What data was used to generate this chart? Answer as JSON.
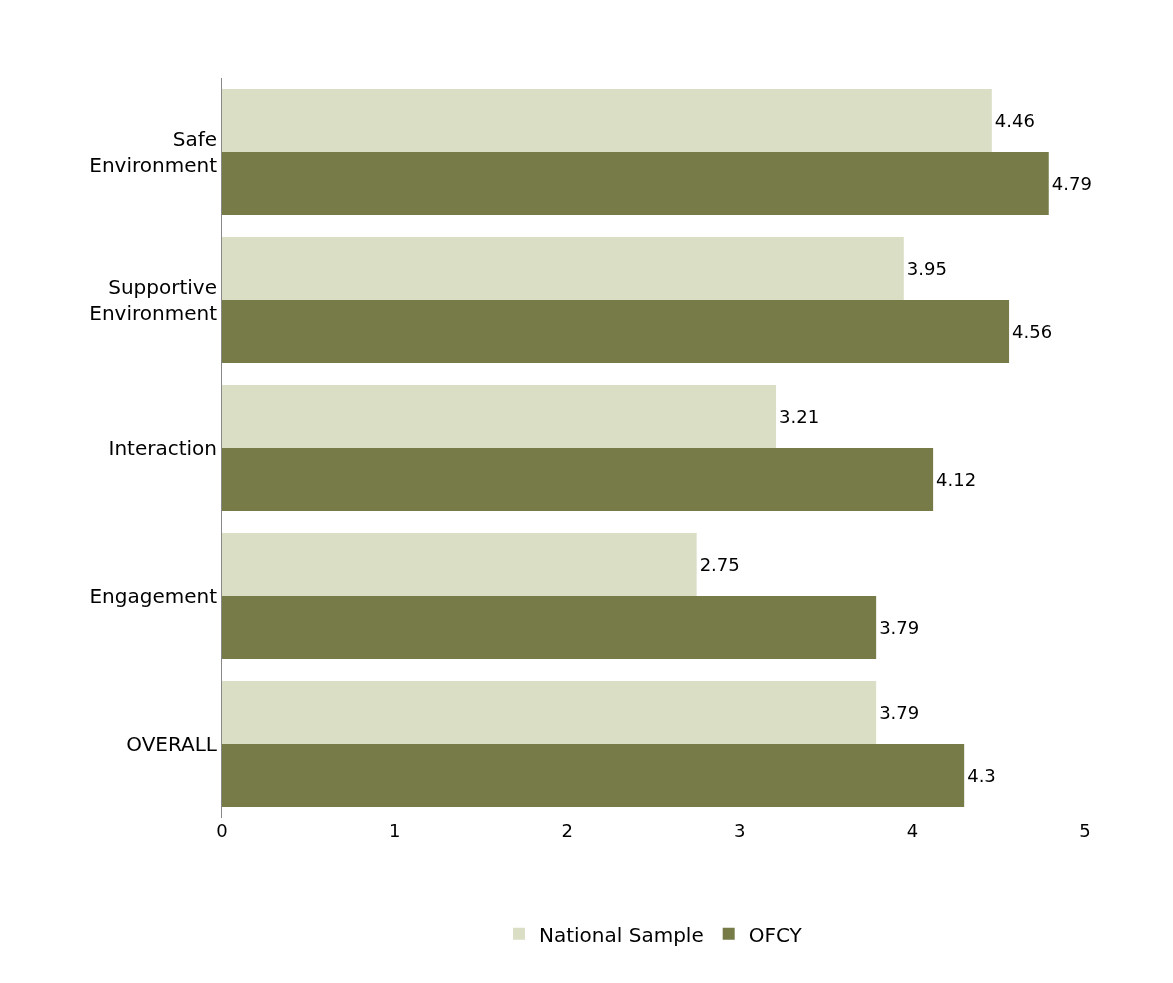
{
  "chart_data": {
    "type": "bar",
    "orientation": "horizontal",
    "categories": [
      "Safe Environment",
      "Supportive Environment",
      "Interaction",
      "Engagement",
      "OVERALL"
    ],
    "series": [
      {
        "name": "National Sample",
        "color": "#d9dec4",
        "values": [
          4.46,
          3.95,
          3.21,
          2.75,
          3.79
        ]
      },
      {
        "name": "OFCY",
        "color": "#767b48",
        "values": [
          4.79,
          4.56,
          4.12,
          3.79,
          4.3
        ]
      }
    ],
    "xlim": [
      0,
      5
    ],
    "xticks": [
      0,
      1,
      2,
      3,
      4,
      5
    ],
    "grid": false,
    "legend": "bottom",
    "data_labels": true
  }
}
